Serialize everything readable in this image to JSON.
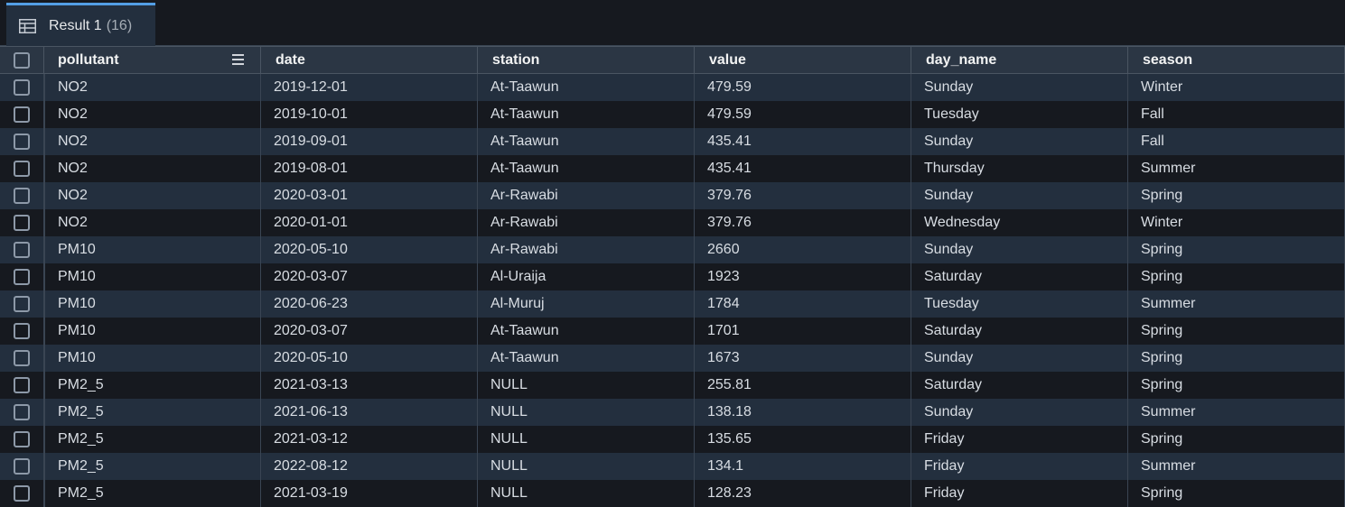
{
  "tab": {
    "label": "Result 1",
    "count": "(16)"
  },
  "columns": [
    "pollutant",
    "date",
    "station",
    "value",
    "day_name",
    "season"
  ],
  "rows": [
    [
      "NO2",
      "2019-12-01",
      "At-Taawun",
      "479.59",
      "Sunday",
      "Winter"
    ],
    [
      "NO2",
      "2019-10-01",
      "At-Taawun",
      "479.59",
      "Tuesday",
      "Fall"
    ],
    [
      "NO2",
      "2019-09-01",
      "At-Taawun",
      "435.41",
      "Sunday",
      "Fall"
    ],
    [
      "NO2",
      "2019-08-01",
      "At-Taawun",
      "435.41",
      "Thursday",
      "Summer"
    ],
    [
      "NO2",
      "2020-03-01",
      "Ar-Rawabi",
      "379.76",
      "Sunday",
      "Spring"
    ],
    [
      "NO2",
      "2020-01-01",
      "Ar-Rawabi",
      "379.76",
      "Wednesday",
      "Winter"
    ],
    [
      "PM10",
      "2020-05-10",
      "Ar-Rawabi",
      "2660",
      "Sunday",
      "Spring"
    ],
    [
      "PM10",
      "2020-03-07",
      "Al-Uraija",
      "1923",
      "Saturday",
      "Spring"
    ],
    [
      "PM10",
      "2020-06-23",
      "Al-Muruj",
      "1784",
      "Tuesday",
      "Summer"
    ],
    [
      "PM10",
      "2020-03-07",
      "At-Taawun",
      "1701",
      "Saturday",
      "Spring"
    ],
    [
      "PM10",
      "2020-05-10",
      "At-Taawun",
      "1673",
      "Sunday",
      "Spring"
    ],
    [
      "PM2_5",
      "2021-03-13",
      "NULL",
      "255.81",
      "Saturday",
      "Spring"
    ],
    [
      "PM2_5",
      "2021-06-13",
      "NULL",
      "138.18",
      "Sunday",
      "Summer"
    ],
    [
      "PM2_5",
      "2021-03-12",
      "NULL",
      "135.65",
      "Friday",
      "Spring"
    ],
    [
      "PM2_5",
      "2022-08-12",
      "NULL",
      "134.1",
      "Friday",
      "Summer"
    ],
    [
      "PM2_5",
      "2021-03-19",
      "NULL",
      "128.23",
      "Friday",
      "Spring"
    ]
  ]
}
